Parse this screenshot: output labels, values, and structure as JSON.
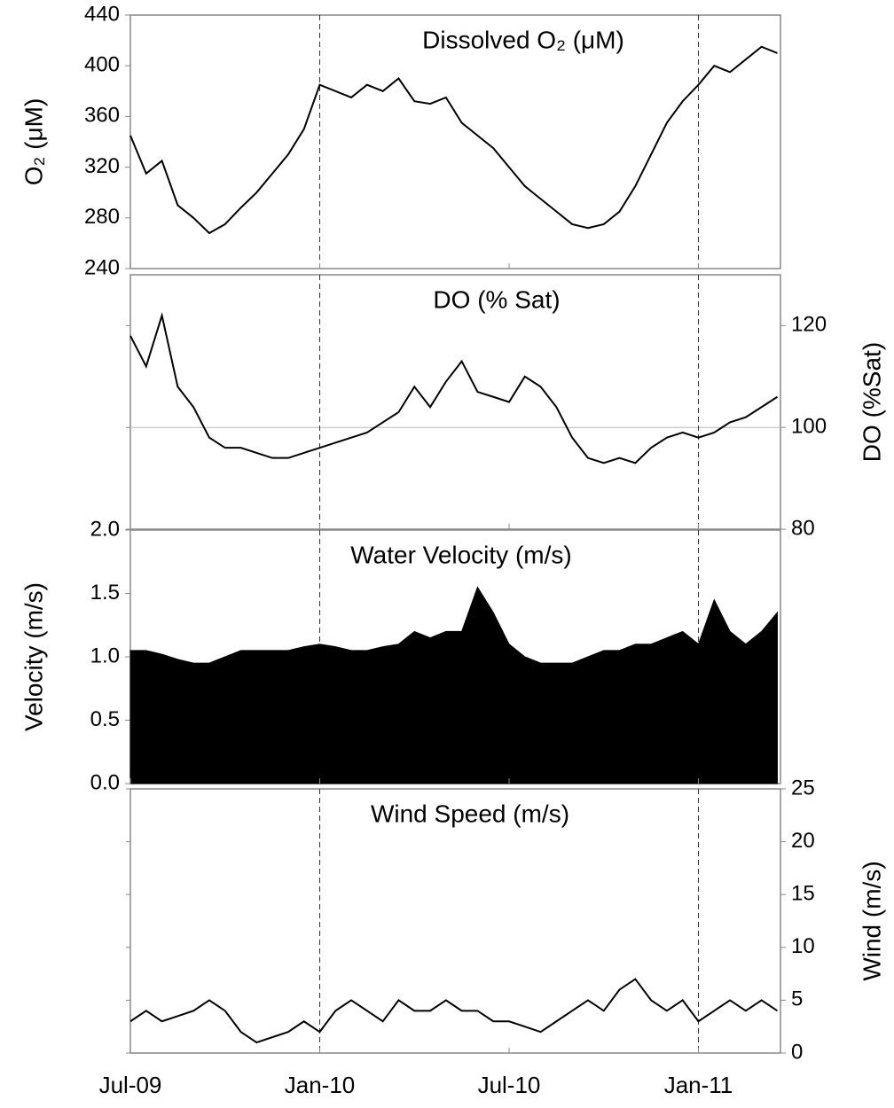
{
  "chart_data": [
    {
      "type": "line",
      "title": "Dissolved O₂ (μM)",
      "ylabel": "O₂ (μM)",
      "axis_side": "left",
      "color": "#000000",
      "ylim": [
        240,
        440
      ],
      "yticks": [
        240,
        280,
        320,
        360,
        400,
        440
      ],
      "x": [
        0,
        0.5,
        1,
        1.5,
        2,
        2.5,
        3,
        3.5,
        4,
        4.5,
        5,
        5.5,
        6,
        6.5,
        7,
        7.5,
        8,
        8.5,
        9,
        9.5,
        10,
        10.5,
        11,
        11.5,
        12,
        12.5,
        13,
        13.5,
        14,
        14.5,
        15,
        15.5,
        16,
        16.5,
        17,
        17.5,
        18,
        18.5,
        19,
        19.5,
        20,
        20.5
      ],
      "values": [
        345,
        315,
        325,
        290,
        280,
        268,
        275,
        288,
        300,
        315,
        330,
        350,
        385,
        380,
        375,
        385,
        380,
        390,
        372,
        370,
        375,
        355,
        345,
        335,
        320,
        305,
        295,
        285,
        275,
        272,
        275,
        285,
        305,
        330,
        355,
        372,
        385,
        400,
        395,
        405,
        415,
        410
      ]
    },
    {
      "type": "line",
      "title": "DO (% Sat)",
      "ylabel": "DO (%Sat)",
      "axis_side": "right",
      "color": "#000000",
      "ylim": [
        80,
        130
      ],
      "yticks": [
        80,
        100,
        120
      ],
      "refline": 100,
      "x": [
        0,
        0.5,
        1,
        1.5,
        2,
        2.5,
        3,
        3.5,
        4,
        4.5,
        5,
        5.5,
        6,
        6.5,
        7,
        7.5,
        8,
        8.5,
        9,
        9.5,
        10,
        10.5,
        11,
        11.5,
        12,
        12.5,
        13,
        13.5,
        14,
        14.5,
        15,
        15.5,
        16,
        16.5,
        17,
        17.5,
        18,
        18.5,
        19,
        19.5,
        20,
        20.5
      ],
      "values": [
        118,
        112,
        122,
        108,
        104,
        98,
        96,
        96,
        95,
        94,
        94,
        95,
        96,
        97,
        98,
        99,
        101,
        103,
        108,
        104,
        109,
        113,
        107,
        106,
        105,
        110,
        108,
        104,
        98,
        94,
        93,
        94,
        93,
        96,
        98,
        99,
        98,
        99,
        101,
        102,
        104,
        106
      ]
    },
    {
      "type": "area",
      "title": "Water Velocity (m/s)",
      "ylabel": "Velocity (m/s)",
      "axis_side": "left",
      "color": "#000000",
      "ylim": [
        0,
        2
      ],
      "yticks": [
        {
          "value": 0,
          "label": "0.0"
        },
        {
          "value": 0.5,
          "label": "0.5"
        },
        {
          "value": 1,
          "label": "1.0"
        },
        {
          "value": 1.5,
          "label": "1.5"
        },
        {
          "value": 2,
          "label": "2.0"
        }
      ],
      "x": [
        0,
        0.5,
        1,
        1.5,
        2,
        2.5,
        3,
        3.5,
        4,
        4.5,
        5,
        5.5,
        6,
        6.5,
        7,
        7.5,
        8,
        8.5,
        9,
        9.5,
        10,
        10.5,
        11,
        11.5,
        12,
        12.5,
        13,
        13.5,
        14,
        14.5,
        15,
        15.5,
        16,
        16.5,
        17,
        17.5,
        18,
        18.5,
        19,
        19.5,
        20,
        20.5
      ],
      "values": [
        1.05,
        1.05,
        1.02,
        0.98,
        0.95,
        0.95,
        1.0,
        1.05,
        1.05,
        1.05,
        1.05,
        1.08,
        1.1,
        1.08,
        1.05,
        1.05,
        1.08,
        1.1,
        1.2,
        1.15,
        1.2,
        1.2,
        1.55,
        1.35,
        1.1,
        1.0,
        0.95,
        0.95,
        0.95,
        1.0,
        1.05,
        1.05,
        1.1,
        1.1,
        1.15,
        1.2,
        1.1,
        1.45,
        1.2,
        1.1,
        1.2,
        1.35
      ]
    },
    {
      "type": "line",
      "title": "Wind Speed (m/s)",
      "ylabel": "Wind (m/s)",
      "axis_side": "right",
      "color": "#000000",
      "ylim": [
        0,
        25
      ],
      "yticks": [
        0,
        5,
        10,
        15,
        20,
        25
      ],
      "xlim": [
        0,
        20.6
      ],
      "xticks": [
        {
          "value": 0,
          "label": "Jul-09"
        },
        {
          "value": 6,
          "label": "Jan-10"
        },
        {
          "value": 12,
          "label": "Jul-10"
        },
        {
          "value": 18,
          "label": "Jan-11"
        }
      ],
      "vlines": [
        6,
        18
      ],
      "x": [
        0,
        0.5,
        1,
        1.5,
        2,
        2.5,
        3,
        3.5,
        4,
        4.5,
        5,
        5.5,
        6,
        6.5,
        7,
        7.5,
        8,
        8.5,
        9,
        9.5,
        10,
        10.5,
        11,
        11.5,
        12,
        12.5,
        13,
        13.5,
        14,
        14.5,
        15,
        15.5,
        16,
        16.5,
        17,
        17.5,
        18,
        18.5,
        19,
        19.5,
        20,
        20.5
      ],
      "values": [
        3,
        4,
        3,
        3.5,
        4,
        5,
        4,
        2,
        1,
        1.5,
        2,
        3,
        2,
        4,
        5,
        4,
        3,
        5,
        4,
        4,
        5,
        4,
        4,
        3,
        3,
        2.5,
        2,
        3,
        4,
        5,
        4,
        6,
        7,
        5,
        4,
        5,
        3,
        4,
        5,
        4,
        5,
        4
      ]
    }
  ]
}
